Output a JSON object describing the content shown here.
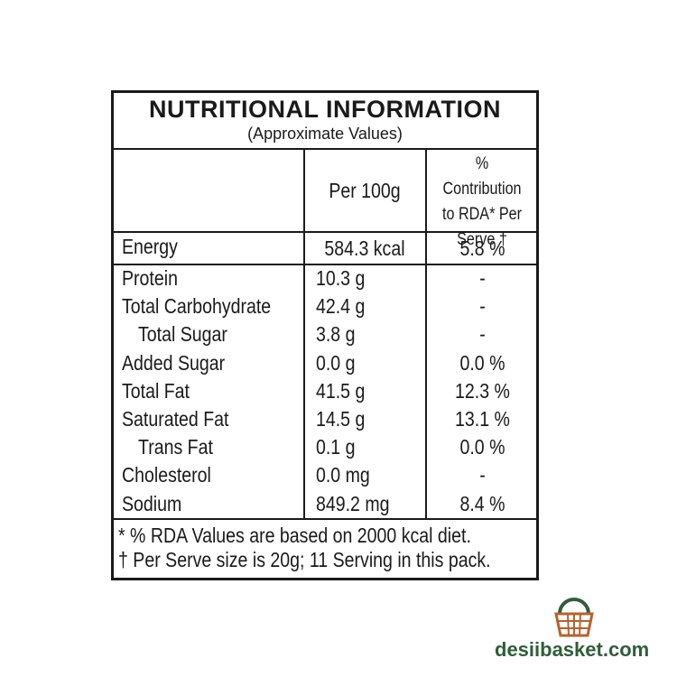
{
  "header": {
    "title": "NUTRITIONAL INFORMATION",
    "subtitle": "(Approximate Values)"
  },
  "table": {
    "columns": [
      "Per 100g",
      "% Contribution to RDA* Per Serve †"
    ],
    "energy": {
      "name": "Energy",
      "per_100g": "584.3 kcal",
      "rda": "5.8 %"
    },
    "rows": [
      {
        "name": "Protein",
        "per_100g": "10.3 g",
        "rda": "-"
      },
      {
        "name": "Total Carbohydrate",
        "per_100g": "42.4 g",
        "rda": "-"
      },
      {
        "name": "Total Sugar",
        "per_100g": "3.8 g",
        "rda": "-",
        "indent": true
      },
      {
        "name": "Added Sugar",
        "per_100g": "0.0 g",
        "rda": "0.0 %"
      },
      {
        "name": "Total Fat",
        "per_100g": "41.5 g",
        "rda": "12.3 %"
      },
      {
        "name": "Saturated Fat",
        "per_100g": "14.5 g",
        "rda": "13.1 %"
      },
      {
        "name": "Trans Fat",
        "per_100g": "0.1 g",
        "rda": "0.0 %",
        "indent": true
      },
      {
        "name": "Cholesterol",
        "per_100g": "0.0 mg",
        "rda": "-"
      },
      {
        "name": "Sodium",
        "per_100g": "849.2 mg",
        "rda": "8.4 %"
      }
    ]
  },
  "footnotes": [
    "* % RDA Values are based on 2000 kcal diet.",
    "† Per Serve size is 20g; 11 Serving in this pack."
  ],
  "brand": "desiibasket.com"
}
